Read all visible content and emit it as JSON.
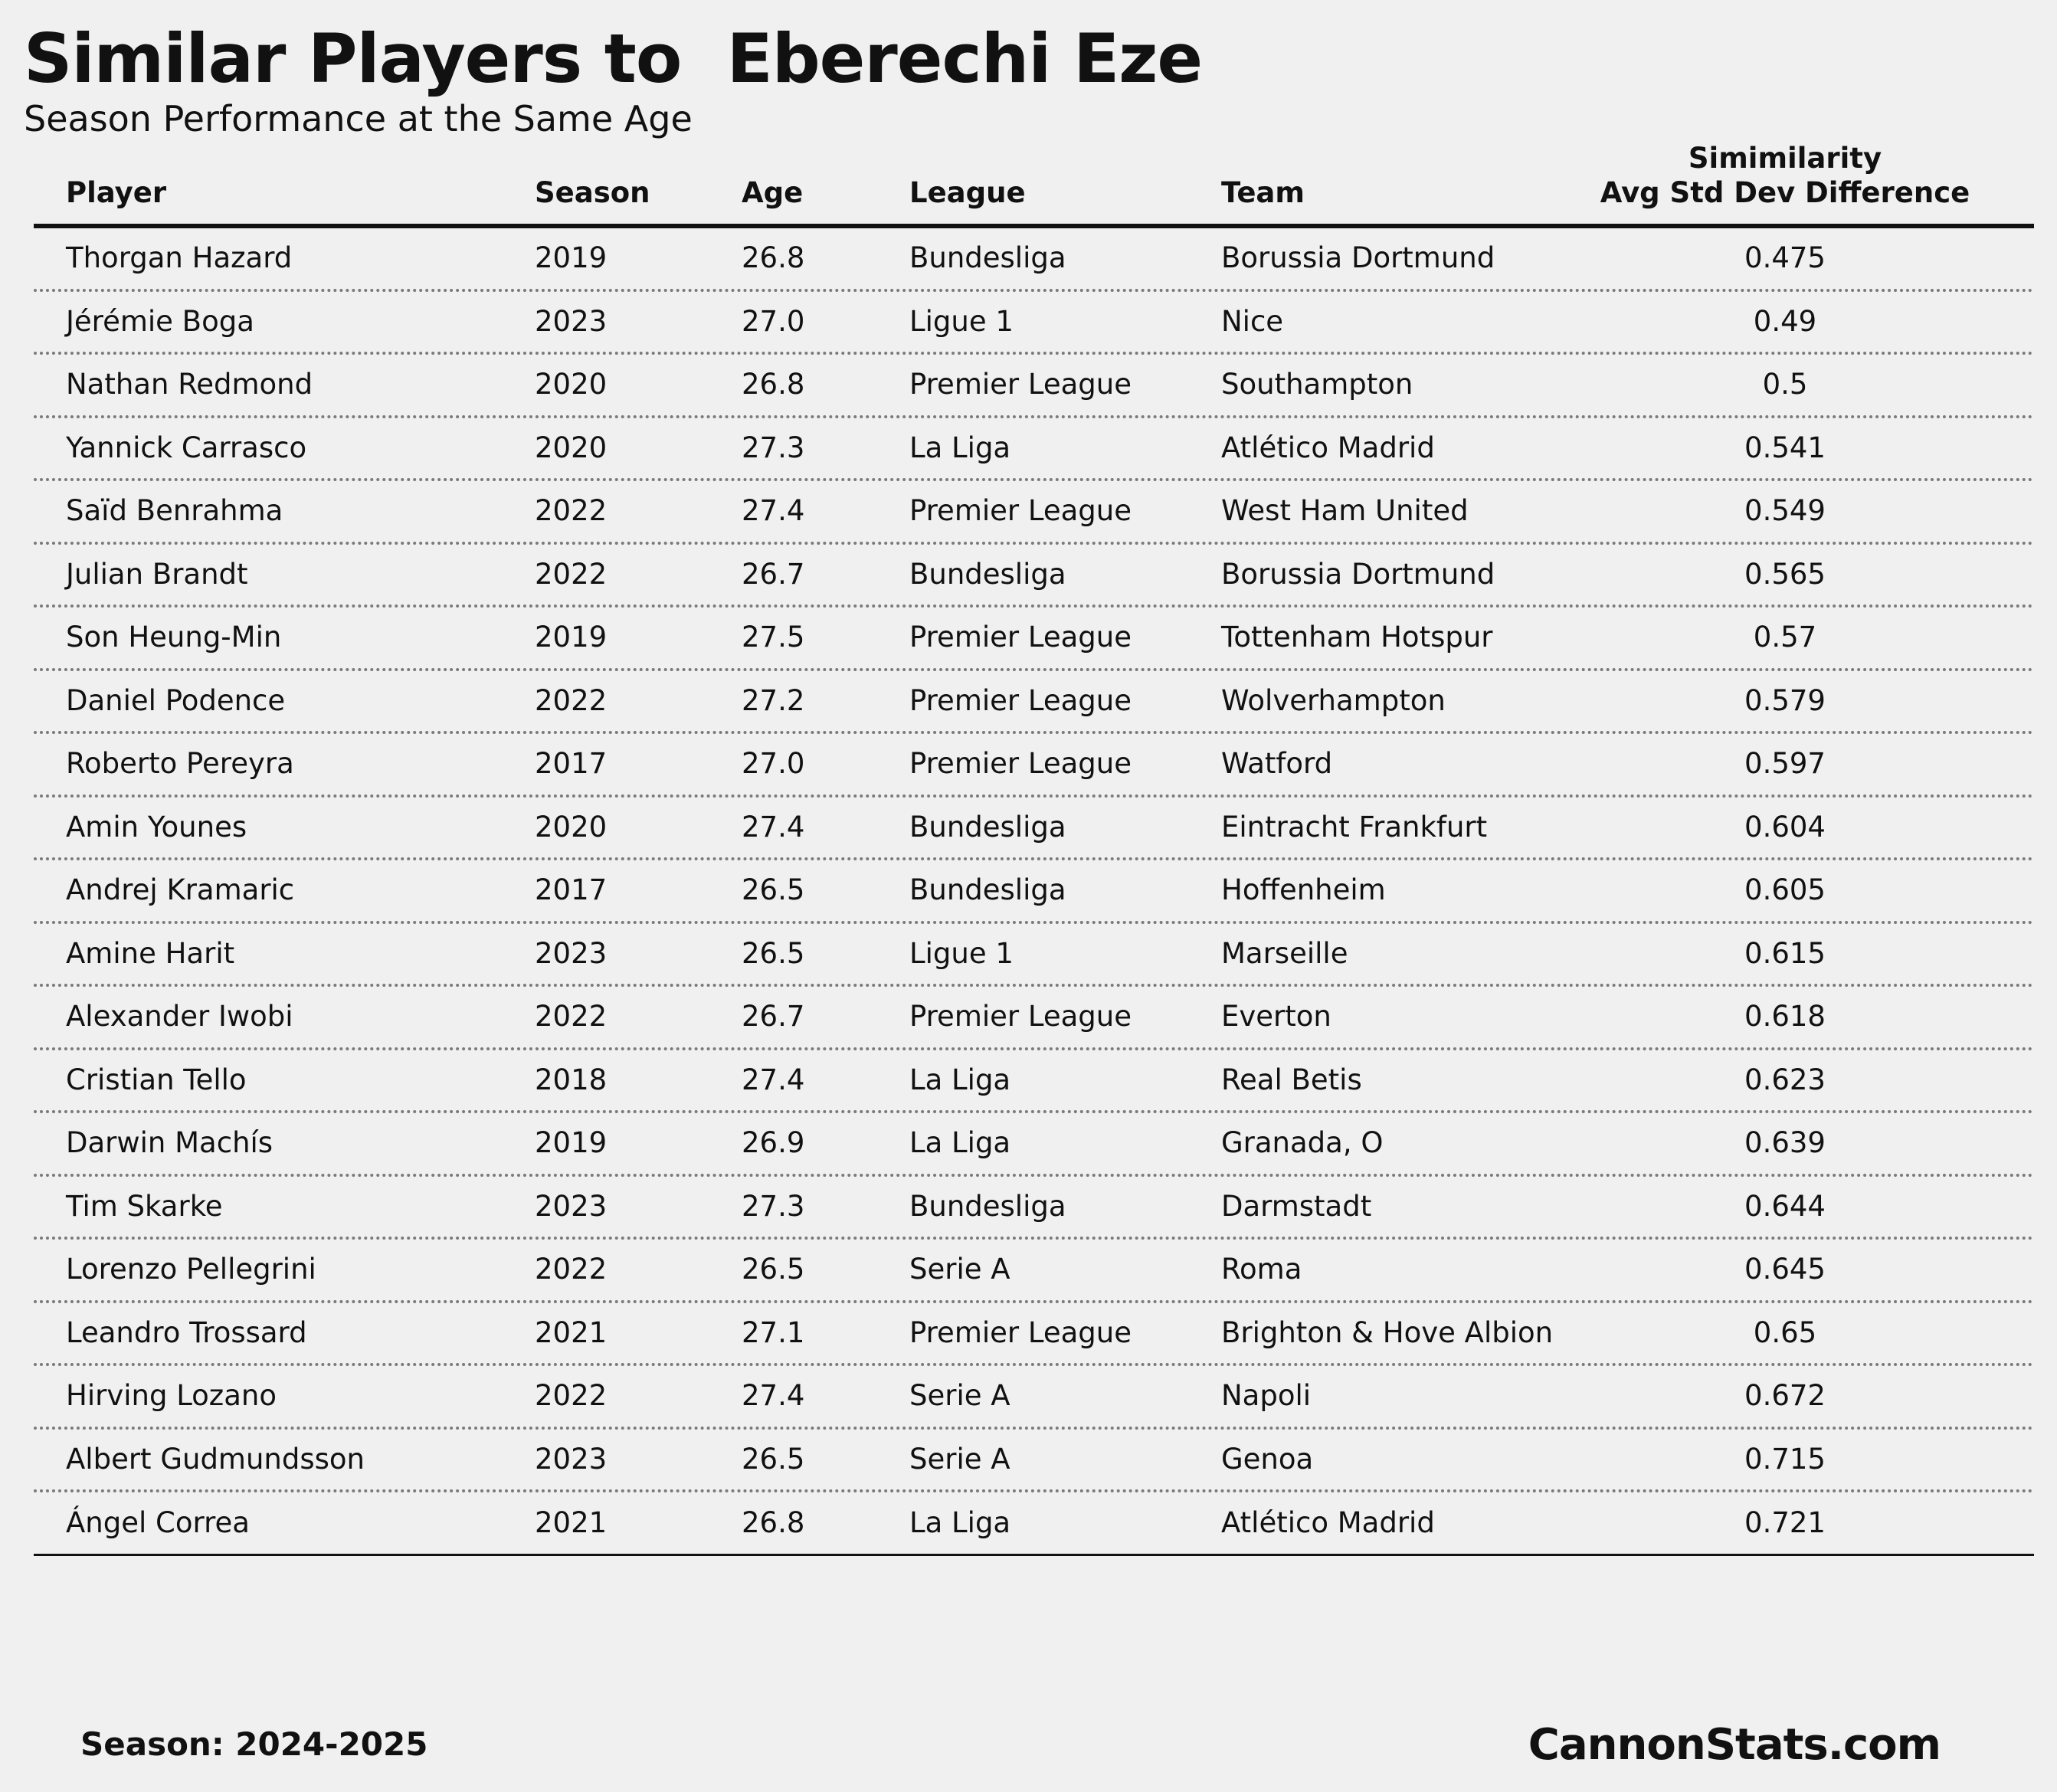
{
  "title": "Similar Players to  Eberechi Eze",
  "subtitle": "Season Performance at the Same Age",
  "chart_data": {
    "type": "table",
    "columns": [
      "Player",
      "Season",
      "Age",
      "League",
      "Team",
      "Simimilarity",
      "Avg Std Dev Difference"
    ],
    "headers": {
      "player": "Player",
      "season": "Season",
      "age": "Age",
      "league": "League",
      "team": "Team",
      "similarity_line1": "Simimilarity",
      "similarity_line2": "Avg Std Dev Difference"
    },
    "rows": [
      {
        "player": "Thorgan Hazard",
        "season": "2019",
        "age": "26.8",
        "league": "Bundesliga",
        "team": "Borussia Dortmund",
        "similarity": "0.475"
      },
      {
        "player": "Jérémie Boga",
        "season": "2023",
        "age": "27.0",
        "league": "Ligue 1",
        "team": "Nice",
        "similarity": "0.49"
      },
      {
        "player": "Nathan Redmond",
        "season": "2020",
        "age": "26.8",
        "league": "Premier League",
        "team": "Southampton",
        "similarity": "0.5"
      },
      {
        "player": "Yannick Carrasco",
        "season": "2020",
        "age": "27.3",
        "league": "La Liga",
        "team": "Atlético Madrid",
        "similarity": "0.541"
      },
      {
        "player": "Saïd Benrahma",
        "season": "2022",
        "age": "27.4",
        "league": "Premier League",
        "team": "West Ham United",
        "similarity": "0.549"
      },
      {
        "player": "Julian Brandt",
        "season": "2022",
        "age": "26.7",
        "league": "Bundesliga",
        "team": "Borussia Dortmund",
        "similarity": "0.565"
      },
      {
        "player": "Son Heung-Min",
        "season": "2019",
        "age": "27.5",
        "league": "Premier League",
        "team": "Tottenham Hotspur",
        "similarity": "0.57"
      },
      {
        "player": "Daniel Podence",
        "season": "2022",
        "age": "27.2",
        "league": "Premier League",
        "team": "Wolverhampton",
        "similarity": "0.579"
      },
      {
        "player": "Roberto Pereyra",
        "season": "2017",
        "age": "27.0",
        "league": "Premier League",
        "team": "Watford",
        "similarity": "0.597"
      },
      {
        "player": "Amin Younes",
        "season": "2020",
        "age": "27.4",
        "league": "Bundesliga",
        "team": "Eintracht Frankfurt",
        "similarity": "0.604"
      },
      {
        "player": "Andrej Kramaric",
        "season": "2017",
        "age": "26.5",
        "league": "Bundesliga",
        "team": "Hoffenheim",
        "similarity": "0.605"
      },
      {
        "player": "Amine Harit",
        "season": "2023",
        "age": "26.5",
        "league": "Ligue 1",
        "team": "Marseille",
        "similarity": "0.615"
      },
      {
        "player": "Alexander Iwobi",
        "season": "2022",
        "age": "26.7",
        "league": "Premier League",
        "team": "Everton",
        "similarity": "0.618"
      },
      {
        "player": "Cristian Tello",
        "season": "2018",
        "age": "27.4",
        "league": "La Liga",
        "team": "Real Betis",
        "similarity": "0.623"
      },
      {
        "player": "Darwin Machís",
        "season": "2019",
        "age": "26.9",
        "league": "La Liga",
        "team": "Granada, O",
        "similarity": "0.639"
      },
      {
        "player": "Tim Skarke",
        "season": "2023",
        "age": "27.3",
        "league": "Bundesliga",
        "team": "Darmstadt",
        "similarity": "0.644"
      },
      {
        "player": "Lorenzo Pellegrini",
        "season": "2022",
        "age": "26.5",
        "league": "Serie A",
        "team": "Roma",
        "similarity": "0.645"
      },
      {
        "player": "Leandro Trossard",
        "season": "2021",
        "age": "27.1",
        "league": "Premier League",
        "team": "Brighton & Hove Albion",
        "similarity": "0.65"
      },
      {
        "player": "Hirving Lozano",
        "season": "2022",
        "age": "27.4",
        "league": "Serie A",
        "team": "Napoli",
        "similarity": "0.672"
      },
      {
        "player": "Albert Gudmundsson",
        "season": "2023",
        "age": "26.5",
        "league": "Serie A",
        "team": "Genoa",
        "similarity": "0.715"
      },
      {
        "player": "Ángel Correa",
        "season": "2021",
        "age": "26.8",
        "league": "La Liga",
        "team": "Atlético Madrid",
        "similarity": "0.721"
      }
    ]
  },
  "footer": {
    "season": "Season: 2024-2025",
    "source": "CannonStats.com"
  },
  "colors": {
    "background": "#f0f0f0",
    "text": "#111111",
    "divider": "#7a7a7a"
  }
}
